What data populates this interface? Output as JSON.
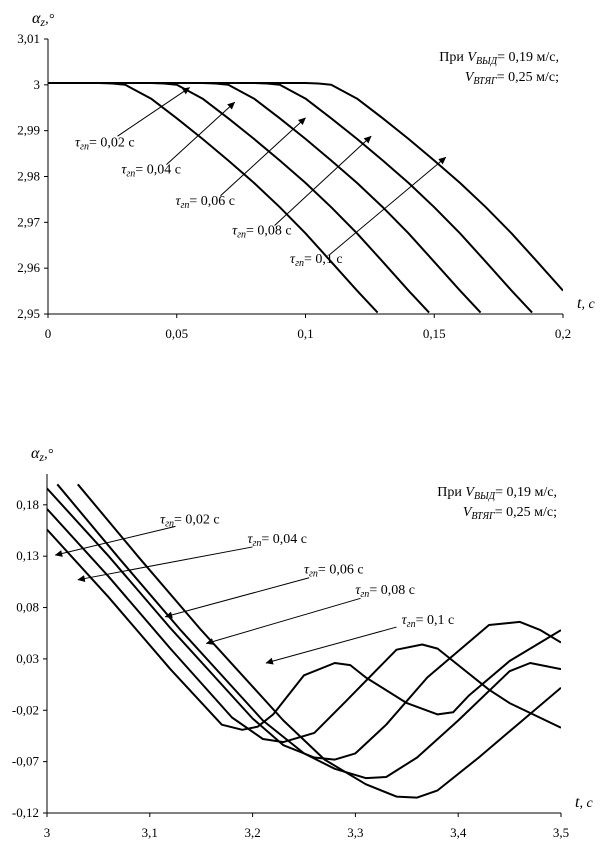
{
  "chart_data": [
    {
      "type": "line",
      "xlabel": "t",
      "xunit": ", с",
      "ylabel_main": "α",
      "ylabel_sub": "z",
      "ylabel_suffix": ",°",
      "xlim": [
        0,
        0.2
      ],
      "ylim": [
        2.95,
        3.01
      ],
      "x_ticks": [
        "0",
        "0,05",
        "0,1",
        "0,15",
        "0,2"
      ],
      "y_ticks": [
        "3,01",
        "3",
        "2,99",
        "2,98",
        "2,97",
        "2,96",
        "2,95"
      ],
      "note_line1_prefix": "При ",
      "note_line1_var": "V",
      "note_line1_sub": "ВЫД",
      "note_line1_value": "=  0,19 м/с,",
      "note_line2_var": "V",
      "note_line2_sub": "ВТЯГ",
      "note_line2_value": "= 0,25 м/с;",
      "series": [
        {
          "label_tau": "τ",
          "label_sub": "гп",
          "label_value": "= 0,02 с",
          "x": [
            0,
            0.02,
            0.025,
            0.03,
            0.04,
            0.05,
            0.06,
            0.07,
            0.08,
            0.09,
            0.1,
            0.11,
            0.12,
            0.128
          ],
          "y": [
            3.0004,
            3.0004,
            3.0003,
            3.0,
            2.997,
            2.9927,
            2.9882,
            2.9835,
            2.9786,
            2.9733,
            2.9676,
            2.9614,
            2.9551,
            2.9503
          ]
        },
        {
          "label_tau": "τ",
          "label_sub": "гп",
          "label_value": "= 0,04 с",
          "x": [
            0,
            0.04,
            0.045,
            0.05,
            0.06,
            0.07,
            0.08,
            0.09,
            0.1,
            0.11,
            0.12,
            0.13,
            0.14,
            0.148
          ],
          "y": [
            3.0004,
            3.0004,
            3.0003,
            3.0,
            2.997,
            2.9927,
            2.9882,
            2.9835,
            2.9786,
            2.9733,
            2.9676,
            2.9614,
            2.9551,
            2.9503
          ]
        },
        {
          "label_tau": "τ",
          "label_sub": "гп",
          "label_value": "= 0,06 с",
          "x": [
            0,
            0.06,
            0.065,
            0.07,
            0.08,
            0.09,
            0.1,
            0.11,
            0.12,
            0.13,
            0.14,
            0.15,
            0.16,
            0.168
          ],
          "y": [
            3.0004,
            3.0004,
            3.0003,
            3.0,
            2.997,
            2.9927,
            2.9882,
            2.9835,
            2.9786,
            2.9733,
            2.9676,
            2.9614,
            2.9551,
            2.9503
          ]
        },
        {
          "label_tau": "τ",
          "label_sub": "гп",
          "label_value": "= 0,08 с",
          "x": [
            0,
            0.08,
            0.085,
            0.09,
            0.1,
            0.11,
            0.12,
            0.13,
            0.14,
            0.15,
            0.16,
            0.17,
            0.18,
            0.188
          ],
          "y": [
            3.0004,
            3.0004,
            3.0003,
            3.0,
            2.997,
            2.9927,
            2.9882,
            2.9835,
            2.9786,
            2.9733,
            2.9676,
            2.9614,
            2.9551,
            2.9503
          ]
        },
        {
          "label_tau": "τ",
          "label_sub": "гп",
          "label_value": "= 0,1 с",
          "x": [
            0,
            0.1,
            0.105,
            0.11,
            0.12,
            0.13,
            0.14,
            0.15,
            0.16,
            0.17,
            0.18,
            0.19,
            0.2
          ],
          "y": [
            3.0004,
            3.0004,
            3.0003,
            3.0,
            2.997,
            2.9927,
            2.9882,
            2.9835,
            2.9786,
            2.9733,
            2.9676,
            2.9614,
            2.9551
          ]
        }
      ],
      "annotations": [
        {
          "text_x": 0.0105,
          "text_y": 2.9866,
          "tail_x": 0.027,
          "tail_y": 2.9888,
          "head_x": 0.055,
          "head_y": 2.9994
        },
        {
          "text_x": 0.0285,
          "text_y": 2.9807,
          "tail_x": 0.046,
          "tail_y": 2.9826,
          "head_x": 0.0725,
          "head_y": 2.9962
        },
        {
          "text_x": 0.0495,
          "text_y": 2.9738,
          "tail_x": 0.067,
          "tail_y": 2.9758,
          "head_x": 0.1,
          "head_y": 2.9928
        },
        {
          "text_x": 0.0715,
          "text_y": 2.9673,
          "tail_x": 0.088,
          "tail_y": 2.9693,
          "head_x": 0.1255,
          "head_y": 2.9888
        },
        {
          "text_x": 0.094,
          "text_y": 2.9611,
          "tail_x": 0.1095,
          "tail_y": 2.963,
          "head_x": 0.1545,
          "head_y": 2.9842
        }
      ]
    },
    {
      "type": "line",
      "xlabel": "t",
      "xunit": ", с",
      "ylabel_main": "α",
      "ylabel_sub": "z",
      "ylabel_suffix": ",°",
      "xlim": [
        3,
        3.5
      ],
      "ylim": [
        -0.12,
        0.21
      ],
      "x_ticks": [
        "3",
        "3,1",
        "3,2",
        "3,3",
        "3,4",
        "3,5"
      ],
      "y_ticks": [
        "0,18",
        "0,13",
        "0,08",
        "0,03",
        "-0,02",
        "-0,07",
        "-0,12"
      ],
      "y_tick_values": [
        0.18,
        0.13,
        0.08,
        0.03,
        -0.02,
        -0.07,
        -0.12
      ],
      "note_line1_prefix": "При ",
      "note_line1_var": "V",
      "note_line1_sub": "ВЫД",
      "note_line1_value": "=  0,19 м/с,",
      "note_line2_var": "V",
      "note_line2_sub": "ВТЯГ",
      "note_line2_value": "= 0,25 м/с;",
      "series": [
        {
          "label_tau": "τ",
          "label_sub": "гп",
          "label_value": "= 0,02 с",
          "x": [
            3.0,
            3.06,
            3.12,
            3.17,
            3.19,
            3.205,
            3.22,
            3.25,
            3.28,
            3.295,
            3.31,
            3.35,
            3.38,
            3.395,
            3.41,
            3.45,
            3.5
          ],
          "y": [
            0.156,
            0.09,
            0.02,
            -0.034,
            -0.039,
            -0.036,
            -0.024,
            0.014,
            0.026,
            0.024,
            0.012,
            -0.013,
            -0.024,
            -0.022,
            -0.006,
            0.028,
            0.058
          ]
        },
        {
          "label_tau": "τ",
          "label_sub": "гп",
          "label_value": "= 0,04 с",
          "x": [
            3.0,
            3.06,
            3.12,
            3.18,
            3.21,
            3.23,
            3.26,
            3.29,
            3.34,
            3.365,
            3.38,
            3.43,
            3.45,
            3.5
          ],
          "y": [
            0.176,
            0.11,
            0.04,
            -0.027,
            -0.048,
            -0.051,
            -0.042,
            -0.012,
            0.039,
            0.044,
            0.04,
            0.0,
            -0.013,
            -0.037
          ]
        },
        {
          "label_tau": "τ",
          "label_sub": "гп",
          "label_value": "= 0,06 с",
          "x": [
            3.0,
            3.06,
            3.12,
            3.2,
            3.23,
            3.26,
            3.28,
            3.3,
            3.33,
            3.37,
            3.43,
            3.46,
            3.48,
            3.5
          ],
          "y": [
            0.196,
            0.13,
            0.06,
            -0.028,
            -0.054,
            -0.066,
            -0.068,
            -0.062,
            -0.034,
            0.012,
            0.063,
            0.066,
            0.058,
            0.046
          ]
        },
        {
          "label_tau": "τ",
          "label_sub": "гп",
          "label_value": "= 0,08 с",
          "x": [
            3.01,
            3.07,
            3.13,
            3.21,
            3.25,
            3.28,
            3.31,
            3.33,
            3.36,
            3.4,
            3.45,
            3.47,
            3.5
          ],
          "y": [
            0.2,
            0.128,
            0.058,
            -0.03,
            -0.062,
            -0.077,
            -0.086,
            -0.085,
            -0.066,
            -0.03,
            0.018,
            0.026,
            0.02
          ]
        },
        {
          "label_tau": "τ",
          "label_sub": "гп",
          "label_value": "= 0,1 с",
          "x": [
            3.03,
            3.09,
            3.15,
            3.23,
            3.27,
            3.31,
            3.34,
            3.36,
            3.38,
            3.42,
            3.46,
            3.5
          ],
          "y": [
            0.2,
            0.128,
            0.058,
            -0.03,
            -0.068,
            -0.092,
            -0.104,
            -0.105,
            -0.098,
            -0.066,
            -0.032,
            0.002
          ]
        }
      ],
      "annotations": [
        {
          "text_x": 3.11,
          "text_y": 0.162,
          "tail_x": 3.125,
          "tail_y": 0.159,
          "head_x": 3.008,
          "head_y": 0.131
        },
        {
          "text_x": 3.195,
          "text_y": 0.143,
          "tail_x": 3.2,
          "tail_y": 0.139,
          "head_x": 3.03,
          "head_y": 0.107
        },
        {
          "text_x": 3.25,
          "text_y": 0.113,
          "tail_x": 3.255,
          "tail_y": 0.109,
          "head_x": 3.115,
          "head_y": 0.071
        },
        {
          "text_x": 3.3,
          "text_y": 0.093,
          "tail_x": 3.305,
          "tail_y": 0.089,
          "head_x": 3.155,
          "head_y": 0.045
        },
        {
          "text_x": 3.345,
          "text_y": 0.064,
          "tail_x": 3.34,
          "tail_y": 0.061,
          "head_x": 3.213,
          "head_y": 0.026
        }
      ]
    }
  ]
}
